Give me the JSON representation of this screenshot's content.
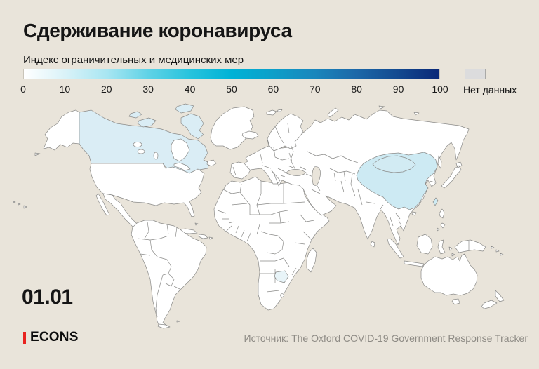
{
  "page_bg": "#e9e4da",
  "header": {
    "title": "Сдерживание коронавируса",
    "subtitle": "Индекс ограничительных и медицинских мер"
  },
  "legend": {
    "ticks": [
      "0",
      "10",
      "20",
      "30",
      "40",
      "50",
      "60",
      "70",
      "80",
      "90",
      "100"
    ],
    "gradient_stops": [
      "#ffffff",
      "#d9f2f8",
      "#a8e6f2",
      "#5fd2e6",
      "#27c3dd",
      "#00b2d6",
      "#0d9fc9",
      "#1a86bc",
      "#1c68a8",
      "#134a90",
      "#0a2877"
    ],
    "no_data_label": "Нет данных",
    "no_data_color": "#dcdcdd"
  },
  "map": {
    "land_color": "#ffffff",
    "border_color": "#8a8a88",
    "sea_color": "#e9e4da",
    "colors": {
      "canada": "#daedf5",
      "china": "#cdeaf3",
      "mongolia": "#d2ebf3",
      "taiwan": "#cdeaf3",
      "botswana": "#e8f4f8"
    }
  },
  "date_label": "01.01",
  "logo": {
    "text": "ECONS",
    "accent_color": "#e8231f"
  },
  "source": "Источник: The Oxford COVID-19 Government Response Tracker",
  "chart_data": {
    "type": "heatmap",
    "subtype": "choropleth-world-map",
    "title": "Сдерживание коронавируса",
    "subtitle_metric": "Индекс ограничительных и медицинских мер",
    "date_shown": "01.01",
    "colorbar": {
      "min": 0,
      "max": 100,
      "tick_values": [
        0,
        10,
        20,
        30,
        40,
        50,
        60,
        70,
        80,
        90,
        100
      ],
      "orientation": "horizontal",
      "no_data_label": "Нет данных"
    },
    "values": [
      {
        "region": "Canada",
        "approx_index": 10
      },
      {
        "region": "China",
        "approx_index": 15
      },
      {
        "region": "Mongolia",
        "approx_index": 12
      },
      {
        "region": "Taiwan",
        "approx_index": 15
      },
      {
        "region": "Botswana",
        "approx_index": 5
      },
      {
        "region": "Rest of world",
        "approx_index": 0
      }
    ],
    "source": "Источник: The Oxford COVID-19 Government Response Tracker"
  }
}
